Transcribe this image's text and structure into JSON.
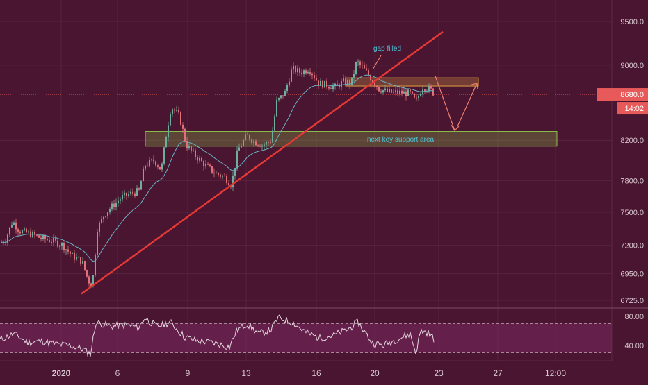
{
  "colors": {
    "background": "#4a1530",
    "grid": "#5e2a42",
    "text": "#d8c8d0",
    "candle_up": "#6fae9c",
    "candle_down": "#e0707a",
    "trendline": "#e53935",
    "ema": "#69b3c7",
    "support_zone": "#8bc34a",
    "gap_zone": "#e0a040",
    "projection": "#f08070",
    "annotation": "#4fc3d7",
    "price_label": "#e85a5a",
    "rsi_line": "#e6d9e0",
    "rsi_band": "#7a2a62"
  },
  "chart_data": [
    {
      "type": "candlestick",
      "instrument_hint": "BTC price",
      "y_axis": {
        "ticks": [
          "9500.0",
          "9000.0",
          "8680.0",
          "8200.0",
          "7800.0",
          "7500.0",
          "7200.0",
          "6950.0",
          "6725.0"
        ],
        "ylim": [
          6680,
          9650
        ],
        "scale": "log"
      },
      "x_axis": {
        "ticks": [
          "2020",
          "6",
          "9",
          "13",
          "16",
          "20",
          "23",
          "27",
          "12:00"
        ]
      },
      "current_price_label": "8680.0",
      "countdown_label": "14:02",
      "anchors": [
        {
          "t": 0,
          "p": 7220
        },
        {
          "t": 8,
          "p": 7250
        },
        {
          "t": 18,
          "p": 7420
        },
        {
          "t": 28,
          "p": 7330
        },
        {
          "t": 45,
          "p": 7300
        },
        {
          "t": 60,
          "p": 7260
        },
        {
          "t": 75,
          "p": 7240
        },
        {
          "t": 90,
          "p": 7200
        },
        {
          "t": 105,
          "p": 7100
        },
        {
          "t": 118,
          "p": 7060
        },
        {
          "t": 127,
          "p": 6890
        },
        {
          "t": 133,
          "p": 6860
        },
        {
          "t": 140,
          "p": 7350
        },
        {
          "t": 150,
          "p": 7480
        },
        {
          "t": 162,
          "p": 7560
        },
        {
          "t": 175,
          "p": 7640
        },
        {
          "t": 190,
          "p": 7680
        },
        {
          "t": 200,
          "p": 7700
        },
        {
          "t": 208,
          "p": 7950
        },
        {
          "t": 222,
          "p": 8000
        },
        {
          "t": 232,
          "p": 7900
        },
        {
          "t": 240,
          "p": 8300
        },
        {
          "t": 246,
          "p": 8550
        },
        {
          "t": 258,
          "p": 8450
        },
        {
          "t": 268,
          "p": 8150
        },
        {
          "t": 280,
          "p": 8050
        },
        {
          "t": 295,
          "p": 7950
        },
        {
          "t": 310,
          "p": 7870
        },
        {
          "t": 322,
          "p": 7840
        },
        {
          "t": 333,
          "p": 7760
        },
        {
          "t": 342,
          "p": 8100
        },
        {
          "t": 355,
          "p": 8250
        },
        {
          "t": 365,
          "p": 8190
        },
        {
          "t": 378,
          "p": 8150
        },
        {
          "t": 390,
          "p": 8200
        },
        {
          "t": 398,
          "p": 8600
        },
        {
          "t": 410,
          "p": 8700
        },
        {
          "t": 420,
          "p": 8960
        },
        {
          "t": 432,
          "p": 8920
        },
        {
          "t": 445,
          "p": 8960
        },
        {
          "t": 458,
          "p": 8800
        },
        {
          "t": 470,
          "p": 8780
        },
        {
          "t": 482,
          "p": 8760
        },
        {
          "t": 495,
          "p": 8820
        },
        {
          "t": 505,
          "p": 8800
        },
        {
          "t": 513,
          "p": 9040
        },
        {
          "t": 522,
          "p": 8970
        },
        {
          "t": 533,
          "p": 8860
        },
        {
          "t": 545,
          "p": 8740
        },
        {
          "t": 560,
          "p": 8700
        },
        {
          "t": 575,
          "p": 8700
        },
        {
          "t": 590,
          "p": 8690
        },
        {
          "t": 598,
          "p": 8600
        },
        {
          "t": 608,
          "p": 8760
        },
        {
          "t": 618,
          "p": 8740
        },
        {
          "t": 625,
          "p": 8680
        }
      ],
      "trendline": {
        "from": {
          "t": 117,
          "p": 6780
        },
        "to": {
          "t": 637,
          "p": 9380
        }
      },
      "zones": [
        {
          "name": "support",
          "t0": 209,
          "t1": 801,
          "p_top": 8290,
          "p_bottom": 8140
        },
        {
          "name": "gap",
          "t0": 497,
          "t1": 688,
          "p_top": 8860,
          "p_bottom": 8770
        }
      ],
      "annotations": [
        "gap filled",
        "next key support area"
      ]
    },
    {
      "type": "line",
      "name": "RSI",
      "y_axis": {
        "ticks": [
          "80.00",
          "40.00"
        ],
        "upper_band": 70,
        "lower_band": 30
      },
      "anchors": [
        {
          "t": 0,
          "v": 48
        },
        {
          "t": 20,
          "v": 56
        },
        {
          "t": 40,
          "v": 44
        },
        {
          "t": 60,
          "v": 46
        },
        {
          "t": 80,
          "v": 42
        },
        {
          "t": 100,
          "v": 40
        },
        {
          "t": 120,
          "v": 35
        },
        {
          "t": 130,
          "v": 28
        },
        {
          "t": 138,
          "v": 72
        },
        {
          "t": 160,
          "v": 66
        },
        {
          "t": 180,
          "v": 68
        },
        {
          "t": 200,
          "v": 65
        },
        {
          "t": 208,
          "v": 78
        },
        {
          "t": 225,
          "v": 66
        },
        {
          "t": 245,
          "v": 72
        },
        {
          "t": 265,
          "v": 52
        },
        {
          "t": 285,
          "v": 46
        },
        {
          "t": 305,
          "v": 44
        },
        {
          "t": 330,
          "v": 38
        },
        {
          "t": 340,
          "v": 60
        },
        {
          "t": 355,
          "v": 70
        },
        {
          "t": 372,
          "v": 56
        },
        {
          "t": 390,
          "v": 62
        },
        {
          "t": 400,
          "v": 78
        },
        {
          "t": 420,
          "v": 72
        },
        {
          "t": 440,
          "v": 58
        },
        {
          "t": 460,
          "v": 50
        },
        {
          "t": 480,
          "v": 54
        },
        {
          "t": 500,
          "v": 62
        },
        {
          "t": 515,
          "v": 72
        },
        {
          "t": 535,
          "v": 44
        },
        {
          "t": 550,
          "v": 40
        },
        {
          "t": 570,
          "v": 48
        },
        {
          "t": 590,
          "v": 56
        },
        {
          "t": 598,
          "v": 30
        },
        {
          "t": 605,
          "v": 60
        },
        {
          "t": 615,
          "v": 58
        },
        {
          "t": 625,
          "v": 48
        }
      ]
    }
  ]
}
